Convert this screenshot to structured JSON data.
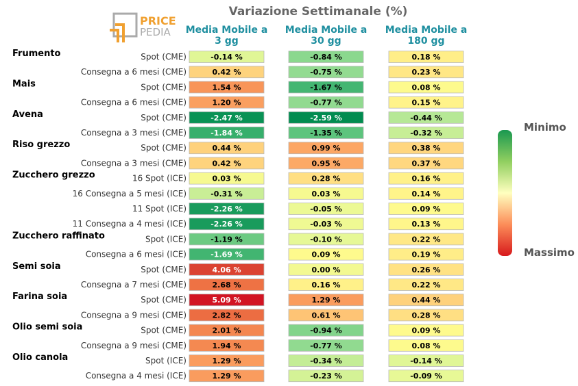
{
  "logo": {
    "line1": "PRICE",
    "line2": "PEDIA"
  },
  "chart_data": {
    "type": "table",
    "title": "Variazione Settimanale (%)",
    "columns": [
      {
        "line1": "Media Mobile a",
        "line2": "3 gg"
      },
      {
        "line1": "Media Mobile a",
        "line2": "30 gg"
      },
      {
        "line1": "Media Mobile a",
        "line2": "180 gg"
      }
    ],
    "legend": {
      "min_label": "Minimo",
      "max_label": "Massimo"
    },
    "rows": [
      {
        "group": "Frumento",
        "label": "Spot (CME)",
        "values": [
          -0.14,
          -0.84,
          0.18
        ],
        "texts": [
          "-0.14 %",
          "-0.84 %",
          "0.18 %"
        ]
      },
      {
        "group": "",
        "label": "Consegna a 6 mesi (CME)",
        "values": [
          0.42,
          -0.75,
          0.23
        ],
        "texts": [
          "0.42 %",
          "-0.75 %",
          "0.23 %"
        ]
      },
      {
        "group": "Mais",
        "label": "Spot (CME)",
        "values": [
          1.54,
          -1.67,
          0.08
        ],
        "texts": [
          "1.54 %",
          "-1.67 %",
          "0.08 %"
        ]
      },
      {
        "group": "",
        "label": "Consegna a 6 mesi (CME)",
        "values": [
          1.2,
          -0.77,
          0.15
        ],
        "texts": [
          "1.20 %",
          "-0.77 %",
          "0.15 %"
        ]
      },
      {
        "group": "Avena",
        "label": "Spot (CME)",
        "values": [
          -2.47,
          -2.59,
          -0.44
        ],
        "texts": [
          "-2.47 %",
          "-2.59 %",
          "-0.44 %"
        ]
      },
      {
        "group": "",
        "label": "Consegna a 3 mesi (CME)",
        "values": [
          -1.84,
          -1.35,
          -0.32
        ],
        "texts": [
          "-1.84 %",
          "-1.35 %",
          "-0.32 %"
        ]
      },
      {
        "group": "Riso grezzo",
        "label": "Spot (CME)",
        "values": [
          0.44,
          0.99,
          0.38
        ],
        "texts": [
          "0.44 %",
          "0.99 %",
          "0.38 %"
        ]
      },
      {
        "group": "",
        "label": "Consegna a 3 mesi (CME)",
        "values": [
          0.42,
          0.95,
          0.37
        ],
        "texts": [
          "0.42 %",
          "0.95 %",
          "0.37 %"
        ]
      },
      {
        "group": "Zucchero grezzo",
        "label": "16 Spot (ICE)",
        "values": [
          0.03,
          0.28,
          0.16
        ],
        "texts": [
          "0.03 %",
          "0.28 %",
          "0.16 %"
        ]
      },
      {
        "group": "",
        "label": "16 Consegna a 5 mesi (ICE)",
        "values": [
          -0.31,
          0.03,
          0.14
        ],
        "texts": [
          "-0.31 %",
          "0.03 %",
          "0.14 %"
        ]
      },
      {
        "group": "",
        "label": "11 Spot (ICE)",
        "values": [
          -2.26,
          -0.05,
          0.09
        ],
        "texts": [
          "-2.26 %",
          "-0.05 %",
          "0.09 %"
        ]
      },
      {
        "group": "",
        "label": "11 Consegna a 4 mesi (ICE)",
        "values": [
          -2.26,
          -0.03,
          0.13
        ],
        "texts": [
          "-2.26 %",
          "-0.03 %",
          "0.13 %"
        ]
      },
      {
        "group": "Zucchero raffinato",
        "label": "Spot (ICE)",
        "values": [
          -1.19,
          -0.1,
          0.22
        ],
        "texts": [
          "-1.19 %",
          "-0.10 %",
          "0.22 %"
        ]
      },
      {
        "group": "",
        "label": "Consegna a 6 mesi (ICE)",
        "values": [
          -1.69,
          0.09,
          0.19
        ],
        "texts": [
          "-1.69 %",
          "0.09 %",
          "0.19 %"
        ]
      },
      {
        "group": "Semi soia",
        "label": "Spot (CME)",
        "values": [
          4.06,
          0.0,
          0.26
        ],
        "texts": [
          "4.06 %",
          "0.00 %",
          "0.26 %"
        ]
      },
      {
        "group": "",
        "label": "Consegna a 7 mesi (CME)",
        "values": [
          2.68,
          0.16,
          0.22
        ],
        "texts": [
          "2.68 %",
          "0.16 %",
          "0.22 %"
        ]
      },
      {
        "group": "Farina soia",
        "label": "Spot (CME)",
        "values": [
          5.09,
          1.29,
          0.44
        ],
        "texts": [
          "5.09 %",
          "1.29 %",
          "0.44 %"
        ]
      },
      {
        "group": "",
        "label": "Consegna a 9 mesi (CME)",
        "values": [
          2.82,
          0.61,
          0.28
        ],
        "texts": [
          "2.82 %",
          "0.61 %",
          "0.28 %"
        ]
      },
      {
        "group": "Olio semi soia",
        "label": "Spot (CME)",
        "values": [
          2.01,
          -0.94,
          0.09
        ],
        "texts": [
          "2.01 %",
          "-0.94 %",
          "0.09 %"
        ]
      },
      {
        "group": "",
        "label": "Consegna a 9 mesi (CME)",
        "values": [
          1.94,
          -0.77,
          0.08
        ],
        "texts": [
          "1.94 %",
          "-0.77 %",
          "0.08 %"
        ]
      },
      {
        "group": "Olio canola",
        "label": "Spot (ICE)",
        "values": [
          1.29,
          -0.34,
          -0.14
        ],
        "texts": [
          "1.29 %",
          "-0.34 %",
          "-0.14 %"
        ]
      },
      {
        "group": "",
        "label": "Consegna a 4 mesi (ICE)",
        "values": [
          1.29,
          -0.23,
          -0.09
        ],
        "texts": [
          "1.29 %",
          "-0.23 %",
          "-0.09 %"
        ]
      }
    ]
  }
}
